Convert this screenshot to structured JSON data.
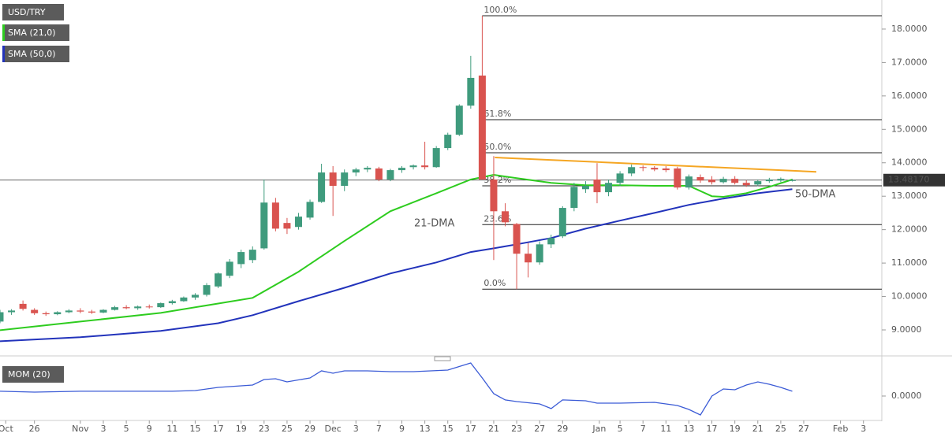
{
  "chart_data": [
    {
      "type": "candlestick",
      "title": "USD/TRY",
      "xlim": [
        0,
        76.8
      ],
      "xticks": [
        {
          "value": 0.5,
          "label": "Oct"
        },
        {
          "value": 3,
          "label": "26"
        },
        {
          "value": 7,
          "label": "Nov"
        },
        {
          "value": 9,
          "label": "3"
        },
        {
          "value": 11,
          "label": "5"
        },
        {
          "value": 13,
          "label": "9"
        },
        {
          "value": 15,
          "label": "11"
        },
        {
          "value": 17,
          "label": "15"
        },
        {
          "value": 19,
          "label": "17"
        },
        {
          "value": 21,
          "label": "19"
        },
        {
          "value": 23,
          "label": "23"
        },
        {
          "value": 25,
          "label": "25"
        },
        {
          "value": 27,
          "label": "29"
        },
        {
          "value": 29,
          "label": "Dec"
        },
        {
          "value": 31,
          "label": "3"
        },
        {
          "value": 33,
          "label": "7"
        },
        {
          "value": 35,
          "label": "9"
        },
        {
          "value": 37,
          "label": "13"
        },
        {
          "value": 39,
          "label": "15"
        },
        {
          "value": 41,
          "label": "17"
        },
        {
          "value": 43,
          "label": "21"
        },
        {
          "value": 45,
          "label": "23"
        },
        {
          "value": 47,
          "label": "27"
        },
        {
          "value": 49,
          "label": "29"
        },
        {
          "value": 52.2,
          "label": "Jan"
        },
        {
          "value": 54,
          "label": "5"
        },
        {
          "value": 56,
          "label": "7"
        },
        {
          "value": 58,
          "label": "11"
        },
        {
          "value": 60,
          "label": "13"
        },
        {
          "value": 62,
          "label": "17"
        },
        {
          "value": 64,
          "label": "19"
        },
        {
          "value": 66,
          "label": "21"
        },
        {
          "value": 68,
          "label": "25"
        },
        {
          "value": 70,
          "label": "27"
        },
        {
          "value": 73.2,
          "label": "Feb"
        },
        {
          "value": 75.2,
          "label": "3"
        }
      ],
      "ylim": [
        8.27,
        18.87
      ],
      "yticks": [
        {
          "value": 9,
          "label": "9.0000"
        },
        {
          "value": 10,
          "label": "10.0000"
        },
        {
          "value": 11,
          "label": "11.0000"
        },
        {
          "value": 12,
          "label": "12.0000"
        },
        {
          "value": 13,
          "label": "13.0000"
        },
        {
          "value": 14,
          "label": "14.0000"
        },
        {
          "value": 15,
          "label": "15.0000"
        },
        {
          "value": 16,
          "label": "16.0000"
        },
        {
          "value": 17,
          "label": "17.0000"
        },
        {
          "value": 18,
          "label": "18.0000"
        }
      ],
      "up_color": "#3f9b7d",
      "down_color": "#d9534f",
      "x": [
        0,
        1,
        2,
        3,
        4,
        5,
        6,
        7,
        8,
        9,
        10,
        11,
        12,
        13,
        14,
        15,
        16,
        17,
        18,
        19,
        20,
        21,
        22,
        23,
        24,
        25,
        26,
        27,
        28,
        29,
        30,
        31,
        32,
        33,
        34,
        35,
        36,
        37,
        38,
        39,
        40,
        41,
        42,
        43,
        44,
        45,
        46,
        47,
        48,
        49,
        50,
        51,
        52,
        53,
        54,
        55,
        56,
        57,
        58,
        59,
        60,
        61,
        62,
        63,
        64,
        65,
        66,
        67,
        68,
        69
      ],
      "open": [
        9.25,
        9.53,
        9.78,
        9.6,
        9.5,
        9.47,
        9.53,
        9.58,
        9.55,
        9.52,
        9.6,
        9.68,
        9.65,
        9.7,
        9.68,
        9.8,
        9.86,
        9.97,
        10.05,
        10.3,
        10.62,
        10.97,
        11.09,
        11.44,
        12.81,
        12.2,
        12.08,
        12.36,
        12.83,
        13.71,
        13.31,
        13.71,
        13.8,
        13.83,
        13.5,
        13.78,
        13.87,
        13.92,
        13.87,
        14.44,
        14.84,
        15.71,
        16.61,
        13.5,
        12.55,
        12.17,
        11.28,
        11.02,
        11.56,
        11.8,
        12.65,
        13.21,
        13.5,
        13.12,
        13.4,
        13.68,
        13.87,
        13.85,
        13.83,
        13.83,
        13.26,
        13.57,
        13.5,
        13.42,
        13.52,
        13.4,
        13.35,
        13.45,
        13.47,
        13.48
      ],
      "high": [
        9.6,
        9.62,
        9.88,
        9.65,
        9.55,
        9.56,
        9.62,
        9.65,
        9.6,
        9.62,
        9.72,
        9.74,
        9.73,
        9.76,
        9.82,
        9.9,
        10.0,
        10.1,
        10.4,
        10.72,
        11.12,
        11.4,
        11.5,
        13.5,
        12.95,
        12.35,
        12.5,
        12.9,
        13.97,
        13.9,
        13.8,
        13.85,
        13.9,
        13.88,
        13.82,
        13.9,
        13.95,
        14.63,
        14.5,
        14.9,
        15.75,
        17.2,
        18.4,
        14.2,
        12.79,
        12.2,
        11.6,
        11.65,
        11.85,
        12.7,
        13.4,
        13.45,
        13.99,
        13.5,
        13.75,
        13.95,
        13.92,
        13.9,
        13.9,
        13.88,
        13.65,
        13.65,
        13.6,
        13.58,
        13.6,
        13.48,
        13.5,
        13.55,
        13.56,
        13.52
      ],
      "low": [
        9.2,
        9.45,
        9.58,
        9.45,
        9.42,
        9.44,
        9.5,
        9.5,
        9.48,
        9.5,
        9.58,
        9.62,
        9.6,
        9.64,
        9.66,
        9.76,
        9.84,
        9.9,
        10.0,
        10.25,
        10.55,
        10.85,
        11.0,
        11.4,
        11.95,
        11.87,
        12.0,
        12.3,
        12.8,
        12.41,
        13.15,
        13.6,
        13.72,
        13.45,
        13.45,
        13.7,
        13.8,
        13.8,
        13.85,
        14.38,
        14.8,
        15.62,
        13.5,
        11.09,
        12.1,
        10.22,
        10.57,
        10.95,
        11.45,
        11.75,
        12.55,
        13.1,
        12.79,
        13.0,
        13.3,
        13.6,
        13.75,
        13.75,
        13.72,
        13.2,
        13.2,
        13.4,
        13.35,
        13.38,
        13.35,
        13.28,
        13.3,
        13.4,
        13.42,
        13.44
      ],
      "close": [
        9.53,
        9.58,
        9.63,
        9.5,
        9.47,
        9.53,
        9.58,
        9.55,
        9.52,
        9.6,
        9.68,
        9.65,
        9.7,
        9.68,
        9.8,
        9.86,
        9.97,
        10.05,
        10.34,
        10.69,
        11.04,
        11.33,
        11.4,
        12.81,
        12.03,
        12.03,
        12.39,
        12.83,
        13.71,
        13.31,
        13.71,
        13.8,
        13.85,
        13.5,
        13.78,
        13.85,
        13.92,
        13.87,
        14.44,
        14.84,
        15.71,
        16.54,
        13.5,
        12.55,
        12.22,
        11.28,
        11.02,
        11.56,
        11.75,
        12.65,
        13.28,
        13.31,
        13.12,
        13.4,
        13.68,
        13.87,
        13.85,
        13.8,
        13.78,
        13.26,
        13.59,
        13.47,
        13.42,
        13.52,
        13.4,
        13.33,
        13.45,
        13.5,
        13.52,
        13.48
      ],
      "overlays": [
        {
          "name": "SMA (21,0)",
          "label": "21-DMA",
          "color": "#2ecc1f",
          "x": [
            0,
            7,
            14,
            19,
            22,
            26,
            30,
            34,
            38,
            41,
            43,
            45,
            48,
            51,
            54,
            57,
            60,
            62,
            63,
            65,
            67,
            69
          ],
          "values": [
            8.99,
            9.25,
            9.51,
            9.79,
            9.96,
            10.74,
            11.66,
            12.55,
            13.09,
            13.5,
            13.64,
            13.54,
            13.4,
            13.33,
            13.33,
            13.31,
            13.31,
            13.0,
            12.98,
            13.09,
            13.28,
            13.5
          ]
        },
        {
          "name": "SMA (50,0)",
          "label": "50-DMA",
          "color": "#2233bb",
          "x": [
            0,
            7,
            14,
            19,
            22,
            26,
            30,
            34,
            38,
            41,
            43,
            45,
            48,
            51,
            54,
            57,
            60,
            63,
            66,
            69
          ],
          "values": [
            8.66,
            8.78,
            8.97,
            9.2,
            9.44,
            9.86,
            10.26,
            10.69,
            11.02,
            11.33,
            11.44,
            11.56,
            11.75,
            12.03,
            12.27,
            12.5,
            12.74,
            12.93,
            13.09,
            13.21
          ]
        }
      ],
      "fibonacci": {
        "x_start": 42,
        "levels": [
          {
            "label": "100.0%",
            "value": 18.4
          },
          {
            "label": "61.8%",
            "value": 15.29
          },
          {
            "label": "50.0%",
            "value": 14.3
          },
          {
            "label": "38.2%",
            "value": 13.31
          },
          {
            "label": "23.6%",
            "value": 12.15
          },
          {
            "label": "0.0%",
            "value": 10.22
          }
        ]
      },
      "trendline": {
        "color": "#f5a623",
        "x": [
          43.1,
          71.1
        ],
        "values": [
          14.16,
          13.73
        ]
      },
      "last_price": {
        "value": 13.4817,
        "label": "13.48170"
      }
    },
    {
      "type": "line",
      "title": "MOM (20)",
      "ylim": [
        -3.8,
        5.89
      ],
      "yticks": [
        {
          "value": 0,
          "label": "0.0000"
        }
      ],
      "series": [
        {
          "name": "MOM (20)",
          "color": "#3b5bd6",
          "x": [
            0,
            3,
            7,
            11,
            15,
            17,
            19,
            22,
            23,
            24,
            25,
            27,
            28,
            29,
            30,
            32,
            34,
            36,
            39,
            41,
            42,
            43,
            44,
            45,
            47,
            48,
            49,
            51,
            52,
            54,
            57,
            59,
            60,
            61,
            62,
            63,
            64,
            65,
            66,
            67,
            68,
            69
          ],
          "values": [
            0.79,
            0.65,
            0.79,
            0.79,
            0.79,
            0.92,
            1.44,
            1.83,
            2.75,
            2.88,
            2.36,
            3.01,
            4.19,
            3.8,
            4.19,
            4.19,
            4.06,
            4.06,
            4.32,
            5.5,
            3.01,
            0.39,
            -0.65,
            -0.92,
            -1.31,
            -2.09,
            -0.65,
            -0.79,
            -1.18,
            -1.18,
            -1.05,
            -1.57,
            -2.23,
            -3.14,
            0,
            1.18,
            1.05,
            1.83,
            2.36,
            1.96,
            1.44,
            0.79
          ]
        }
      ]
    }
  ]
}
